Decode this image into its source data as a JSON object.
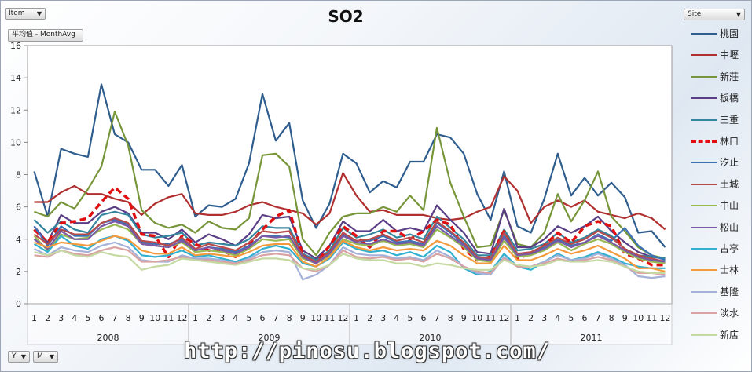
{
  "controls": {
    "item_filter": "Item",
    "value_field": "平均值 - MonthAvg",
    "site_filter": "Site",
    "year_field": "Y",
    "month_field": "M"
  },
  "watermark": "http://pinosu.blogspot.com/",
  "chart_data": {
    "type": "line",
    "title": "SO2",
    "xlabel": "",
    "ylabel": "",
    "ylim": [
      0,
      16
    ],
    "yticks": [
      0,
      2,
      4,
      6,
      8,
      10,
      12,
      14,
      16
    ],
    "grid": false,
    "legend_position": "right",
    "years": [
      "2008",
      "2009",
      "2010",
      "2011"
    ],
    "months": [
      "1",
      "2",
      "3",
      "4",
      "5",
      "6",
      "7",
      "8",
      "9",
      "10",
      "11",
      "12"
    ],
    "series": [
      {
        "name": "桃園",
        "color": "#2e5d8e",
        "dash": false,
        "values": [
          8.2,
          5.4,
          9.6,
          9.3,
          9.1,
          13.6,
          10.5,
          10.0,
          8.3,
          8.3,
          7.3,
          8.6,
          5.4,
          6.1,
          6.0,
          6.5,
          8.7,
          13.0,
          10.1,
          11.2,
          6.4,
          4.7,
          6.2,
          9.3,
          8.7,
          6.9,
          7.6,
          7.2,
          8.8,
          8.8,
          10.5,
          10.3,
          9.3,
          6.8,
          5.2,
          8.2,
          4.8,
          4.4,
          6.5,
          9.3,
          6.7,
          7.8,
          6.7,
          7.5,
          6.6,
          4.4,
          4.5,
          3.5
        ]
      },
      {
        "name": "中壢",
        "color": "#b03030",
        "dash": false,
        "values": [
          6.3,
          6.3,
          6.9,
          7.3,
          6.8,
          6.8,
          6.5,
          6.3,
          5.5,
          6.2,
          6.6,
          6.8,
          5.6,
          5.5,
          5.5,
          5.7,
          6.1,
          6.3,
          6.0,
          5.8,
          5.6,
          4.9,
          5.6,
          8.1,
          6.7,
          5.7,
          5.8,
          5.5,
          5.5,
          5.5,
          5.3,
          5.2,
          5.3,
          5.7,
          6.0,
          7.9,
          7.0,
          5.0,
          6.0,
          6.4,
          6.0,
          6.4,
          5.7,
          5.5,
          5.3,
          5.6,
          5.3,
          4.6
        ]
      },
      {
        "name": "新莊",
        "color": "#77963a",
        "dash": false,
        "values": [
          5.7,
          5.4,
          6.3,
          5.9,
          7.1,
          8.5,
          11.9,
          9.8,
          5.8,
          5.0,
          4.7,
          4.9,
          4.4,
          5.1,
          4.7,
          4.6,
          5.3,
          9.2,
          9.3,
          8.5,
          4.0,
          3.0,
          4.4,
          5.4,
          5.6,
          5.6,
          6.0,
          5.7,
          6.7,
          5.8,
          10.9,
          7.5,
          5.4,
          3.5,
          3.6,
          5.8,
          3.7,
          3.5,
          4.4,
          6.8,
          5.1,
          6.4,
          8.2,
          5.4,
          4.5,
          3.5,
          3.0,
          2.8
        ]
      },
      {
        "name": "板橋",
        "color": "#5a3e85",
        "dash": false,
        "values": [
          4.8,
          3.8,
          5.5,
          5.0,
          5.0,
          5.7,
          6.0,
          5.6,
          4.4,
          4.4,
          4.0,
          4.6,
          3.8,
          4.3,
          4.0,
          3.6,
          4.3,
          5.5,
          5.3,
          5.4,
          3.3,
          2.8,
          3.6,
          5.1,
          4.5,
          4.5,
          5.2,
          4.5,
          4.7,
          4.5,
          6.1,
          5.2,
          4.4,
          3.2,
          3.1,
          5.9,
          3.5,
          3.5,
          4.0,
          4.8,
          4.4,
          4.8,
          5.4,
          4.5,
          3.8,
          3.2,
          2.9,
          2.8
        ]
      },
      {
        "name": "三重",
        "color": "#34859e",
        "dash": false,
        "values": [
          5.2,
          4.4,
          5.1,
          4.6,
          4.4,
          5.5,
          5.7,
          5.5,
          4.3,
          4.1,
          4.2,
          4.4,
          3.6,
          3.8,
          3.7,
          3.6,
          4.0,
          4.8,
          4.7,
          4.7,
          3.1,
          2.7,
          3.3,
          4.7,
          4.1,
          4.3,
          4.6,
          4.1,
          4.3,
          4.0,
          5.4,
          4.7,
          4.0,
          3.0,
          3.0,
          4.6,
          3.3,
          3.4,
          3.7,
          4.4,
          3.8,
          4.1,
          4.6,
          4.2,
          3.4,
          3.0,
          2.9,
          2.8
        ]
      },
      {
        "name": "林口",
        "color": "#e01010",
        "dash": true,
        "values": [
          4.6,
          3.8,
          5.0,
          5.1,
          5.3,
          6.3,
          7.2,
          6.5,
          4.3,
          4.2,
          2.9,
          4.2,
          3.7,
          3.3,
          3.3,
          2.9,
          3.7,
          4.6,
          5.4,
          5.8,
          3.0,
          2.5,
          3.6,
          4.8,
          4.2,
          3.5,
          4.5,
          4.5,
          4.0,
          4.5,
          5.2,
          4.9,
          3.4,
          2.7,
          2.9,
          4.5,
          2.8,
          3.1,
          3.6,
          4.4,
          3.8,
          4.8,
          5.1,
          4.8,
          3.1,
          2.8,
          2.4,
          2.4
        ]
      },
      {
        "name": "汐止",
        "color": "#3d72b5",
        "dash": false,
        "values": [
          4.8,
          3.6,
          4.8,
          4.2,
          4.2,
          5.0,
          5.2,
          4.9,
          3.8,
          3.7,
          3.7,
          4.0,
          3.3,
          3.5,
          3.4,
          3.2,
          3.6,
          4.2,
          4.2,
          4.1,
          2.9,
          2.6,
          3.1,
          4.3,
          3.9,
          3.9,
          4.2,
          3.8,
          3.9,
          3.7,
          5.0,
          4.4,
          3.7,
          2.8,
          2.8,
          4.2,
          3.1,
          3.1,
          3.5,
          4.0,
          3.6,
          3.8,
          4.3,
          3.9,
          4.7,
          3.6,
          3.0,
          2.7
        ]
      },
      {
        "name": "土城",
        "color": "#b84a4a",
        "dash": false,
        "values": [
          4.3,
          3.7,
          4.6,
          4.3,
          4.3,
          5.0,
          5.3,
          5.0,
          3.9,
          3.8,
          3.6,
          4.1,
          3.4,
          3.7,
          3.5,
          3.3,
          3.8,
          4.5,
          4.4,
          4.5,
          3.0,
          2.6,
          3.2,
          4.4,
          3.9,
          4.0,
          4.3,
          3.9,
          4.1,
          3.8,
          5.1,
          4.5,
          3.8,
          2.9,
          2.8,
          4.4,
          3.1,
          3.2,
          3.6,
          4.1,
          3.7,
          4.0,
          4.5,
          4.1,
          3.4,
          3.0,
          2.8,
          2.6
        ]
      },
      {
        "name": "中山",
        "color": "#98b954",
        "dash": false,
        "values": [
          4.2,
          3.3,
          4.3,
          4.0,
          4.1,
          4.6,
          4.9,
          4.6,
          3.7,
          3.6,
          3.5,
          3.8,
          3.2,
          3.3,
          3.2,
          3.0,
          3.4,
          4.0,
          3.9,
          4.0,
          2.8,
          2.5,
          3.0,
          4.0,
          3.7,
          3.6,
          3.9,
          3.6,
          3.7,
          3.5,
          4.6,
          4.1,
          3.5,
          2.7,
          2.6,
          3.9,
          2.9,
          3.0,
          3.3,
          3.8,
          3.3,
          3.7,
          4.0,
          3.7,
          3.2,
          2.8,
          2.6,
          2.5
        ]
      },
      {
        "name": "松山",
        "color": "#7a5aa6",
        "dash": false,
        "values": [
          4.0,
          3.4,
          4.5,
          4.0,
          4.0,
          4.8,
          5.1,
          4.8,
          3.7,
          3.6,
          3.5,
          3.9,
          3.3,
          3.5,
          3.3,
          3.1,
          3.5,
          4.2,
          4.1,
          4.2,
          2.9,
          2.5,
          3.1,
          4.2,
          3.8,
          3.7,
          4.0,
          3.7,
          3.8,
          3.6,
          4.8,
          4.2,
          3.6,
          2.8,
          2.7,
          4.1,
          3.0,
          3.1,
          3.4,
          3.9,
          3.5,
          3.8,
          4.2,
          3.8,
          3.3,
          2.9,
          2.7,
          2.6
        ]
      },
      {
        "name": "古亭",
        "color": "#31b0cf",
        "dash": false,
        "values": [
          3.7,
          3.2,
          4.2,
          3.6,
          3.4,
          4.0,
          4.2,
          3.9,
          3.0,
          2.9,
          3.0,
          3.3,
          2.9,
          3.0,
          2.8,
          2.6,
          2.9,
          3.4,
          3.6,
          3.4,
          2.5,
          2.3,
          2.8,
          3.8,
          3.4,
          3.2,
          3.3,
          3.0,
          3.2,
          2.9,
          3.6,
          3.2,
          2.2,
          1.8,
          2.0,
          3.1,
          2.3,
          2.1,
          2.6,
          3.1,
          2.7,
          2.9,
          3.2,
          2.9,
          2.5,
          2.3,
          2.2,
          2.2
        ]
      },
      {
        "name": "士林",
        "color": "#f39a3c",
        "dash": false,
        "values": [
          3.8,
          3.5,
          3.8,
          3.7,
          3.6,
          3.9,
          4.2,
          4.0,
          3.3,
          3.1,
          3.1,
          3.5,
          3.0,
          3.1,
          3.0,
          2.9,
          3.2,
          3.6,
          3.7,
          3.7,
          2.6,
          2.3,
          2.9,
          3.9,
          3.5,
          3.3,
          3.5,
          3.3,
          3.4,
          3.3,
          3.9,
          3.6,
          3.0,
          2.5,
          2.5,
          3.6,
          2.7,
          2.7,
          3.0,
          3.4,
          3.1,
          3.3,
          3.6,
          3.2,
          2.8,
          2.2,
          2.2,
          2.0
        ]
      },
      {
        "name": "基隆",
        "color": "#a4b1d8",
        "dash": false,
        "values": [
          3.4,
          3.0,
          3.5,
          3.3,
          3.2,
          3.6,
          3.8,
          3.5,
          2.7,
          2.6,
          2.6,
          3.0,
          2.8,
          2.8,
          2.7,
          2.5,
          2.8,
          3.2,
          3.3,
          3.2,
          1.5,
          1.8,
          2.4,
          3.5,
          3.1,
          3.0,
          3.0,
          2.8,
          2.9,
          2.7,
          3.3,
          2.9,
          2.3,
          1.9,
          1.8,
          2.9,
          2.3,
          2.3,
          2.6,
          3.0,
          2.7,
          2.8,
          3.1,
          2.8,
          2.4,
          1.7,
          1.6,
          1.7
        ]
      },
      {
        "name": "淡水",
        "color": "#d9a3a3",
        "dash": false,
        "values": [
          3.0,
          2.9,
          3.3,
          3.1,
          3.0,
          3.3,
          3.5,
          3.3,
          2.6,
          2.6,
          2.7,
          2.9,
          2.7,
          2.7,
          2.6,
          2.5,
          2.7,
          3.0,
          3.1,
          3.0,
          2.2,
          2.0,
          2.4,
          3.3,
          2.9,
          2.8,
          2.9,
          2.7,
          2.8,
          2.6,
          3.1,
          2.8,
          2.3,
          2.0,
          1.9,
          2.8,
          2.3,
          2.3,
          2.5,
          2.8,
          2.6,
          2.7,
          2.9,
          2.7,
          2.3,
          1.9,
          1.9,
          1.8
        ]
      },
      {
        "name": "新店",
        "color": "#c5d9a3",
        "dash": false,
        "values": [
          3.2,
          3.0,
          3.3,
          3.0,
          2.9,
          3.2,
          3.0,
          2.9,
          2.1,
          2.3,
          2.4,
          2.8,
          2.7,
          2.6,
          2.5,
          2.4,
          2.6,
          2.8,
          2.8,
          2.7,
          2.2,
          2.1,
          2.4,
          3.1,
          2.8,
          2.7,
          2.7,
          2.5,
          2.5,
          2.3,
          2.5,
          2.4,
          2.2,
          2.1,
          2.1,
          2.7,
          2.4,
          2.3,
          2.4,
          2.7,
          2.6,
          2.6,
          2.7,
          2.6,
          2.3,
          2.0,
          1.9,
          1.9
        ]
      }
    ]
  }
}
